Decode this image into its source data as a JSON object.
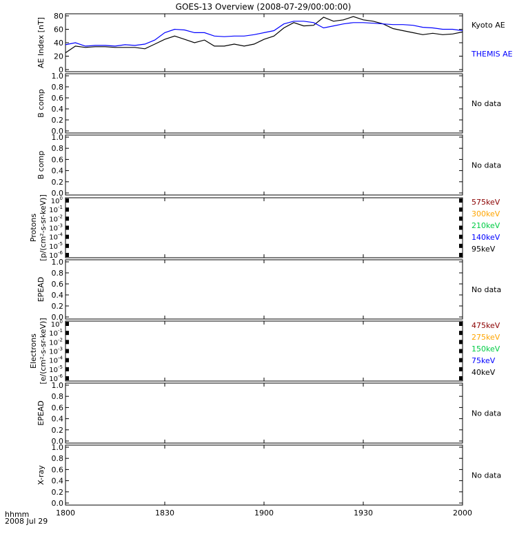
{
  "title": "GOES-13 Overview (2008-07-29/00:00:00)",
  "bottom_left": {
    "line1": "hhmm",
    "line2": "2008 Jul 29"
  },
  "x_ticks": [
    "1800",
    "1830",
    "1900",
    "1930",
    "2000"
  ],
  "colors": {
    "black": "#000000",
    "blue": "#0000ff",
    "dark_red": "#8b0000",
    "orange": "#ffa500",
    "green": "#00cc44"
  },
  "chart_data": [
    {
      "type": "line",
      "panel": "ae",
      "ylabel": "AE Index [nT]",
      "ylim": [
        0,
        80
      ],
      "yticks": [
        "0",
        "20",
        "40",
        "60",
        "80"
      ],
      "x": [
        18.0,
        18.05,
        18.1,
        18.15,
        18.2,
        18.25,
        18.3,
        18.35,
        18.4,
        18.45,
        18.5,
        18.55,
        18.6,
        18.65,
        18.7,
        18.75,
        18.8,
        18.85,
        18.9,
        18.95,
        19.0,
        19.05,
        19.1,
        19.15,
        19.2,
        19.25,
        19.3,
        19.35,
        19.4,
        19.45,
        19.5,
        19.55,
        19.6,
        19.65,
        19.7,
        19.75,
        19.8,
        19.85,
        19.9,
        19.95,
        20.0
      ],
      "series": [
        {
          "name": "Kyoto AE",
          "color": "#000000",
          "values": [
            25,
            35,
            33,
            34,
            34,
            33,
            33,
            33,
            31,
            38,
            45,
            50,
            45,
            40,
            44,
            35,
            35,
            38,
            35,
            38,
            45,
            50,
            62,
            70,
            65,
            66,
            78,
            72,
            74,
            79,
            74,
            72,
            68,
            61,
            58,
            55,
            52,
            54,
            52,
            53,
            56
          ]
        },
        {
          "name": "THEMIS AE",
          "color": "#0000ff",
          "values": [
            37,
            40,
            35,
            36,
            36,
            35,
            37,
            36,
            38,
            44,
            55,
            60,
            59,
            55,
            55,
            50,
            49,
            50,
            50,
            52,
            55,
            58,
            68,
            72,
            72,
            70,
            62,
            65,
            68,
            70,
            70,
            69,
            68,
            67,
            67,
            66,
            63,
            62,
            60,
            60,
            58
          ]
        }
      ]
    },
    {
      "type": "line",
      "panel": "bcomp1",
      "ylabel": "B comp",
      "ylim": [
        0,
        1
      ],
      "yticks": [
        "0.0",
        "0.2",
        "0.4",
        "0.6",
        "0.8",
        "1.0"
      ],
      "note": "No data",
      "series": []
    },
    {
      "type": "line",
      "panel": "bcomp2",
      "ylabel": "B comp",
      "ylim": [
        0,
        1
      ],
      "yticks": [
        "0.0",
        "0.2",
        "0.4",
        "0.6",
        "0.8",
        "1.0"
      ],
      "note": "No data",
      "series": []
    },
    {
      "type": "line",
      "panel": "protons",
      "ylabel_line1": "Protons",
      "ylabel_line2": "[p/(cm²-s-sr-keV)]",
      "scale": "log",
      "ylim": [
        1e-06,
        1
      ],
      "ytick_exponents": [
        "0",
        "-1",
        "-2",
        "-3",
        "-4",
        "-5",
        "-6"
      ],
      "legend": [
        {
          "name": "575keV",
          "color": "#8b0000"
        },
        {
          "name": "300keV",
          "color": "#ffa500"
        },
        {
          "name": "210keV",
          "color": "#00cc44"
        },
        {
          "name": "140keV",
          "color": "#0000ff"
        },
        {
          "name": "95keV",
          "color": "#000000"
        }
      ],
      "series": []
    },
    {
      "type": "line",
      "panel": "epead1",
      "ylabel": "EPEAD",
      "ylim": [
        0,
        1
      ],
      "yticks": [
        "0.0",
        "0.2",
        "0.4",
        "0.6",
        "0.8",
        "1.0"
      ],
      "note": "No data",
      "series": []
    },
    {
      "type": "line",
      "panel": "electrons",
      "ylabel_line1": "Electrons",
      "ylabel_line2": "[e/(cm²-s-sr-keV)]",
      "scale": "log",
      "ylim": [
        1e-06,
        1
      ],
      "ytick_exponents": [
        "0",
        "-1",
        "-2",
        "-3",
        "-4",
        "-5",
        "-6"
      ],
      "legend": [
        {
          "name": "475keV",
          "color": "#8b0000"
        },
        {
          "name": "275keV",
          "color": "#ffa500"
        },
        {
          "name": "150keV",
          "color": "#00cc44"
        },
        {
          "name": "75keV",
          "color": "#0000ff"
        },
        {
          "name": "40keV",
          "color": "#000000"
        }
      ],
      "series": []
    },
    {
      "type": "line",
      "panel": "epead2",
      "ylabel": "EPEAD",
      "ylim": [
        0,
        1
      ],
      "yticks": [
        "0.0",
        "0.2",
        "0.4",
        "0.6",
        "0.8",
        "1.0"
      ],
      "note": "No data",
      "series": []
    },
    {
      "type": "line",
      "panel": "xray",
      "ylabel": "X-ray",
      "ylim": [
        0,
        1
      ],
      "yticks": [
        "0.0",
        "0.2",
        "0.4",
        "0.6",
        "0.8",
        "1.0"
      ],
      "note": "No data",
      "series": []
    }
  ]
}
